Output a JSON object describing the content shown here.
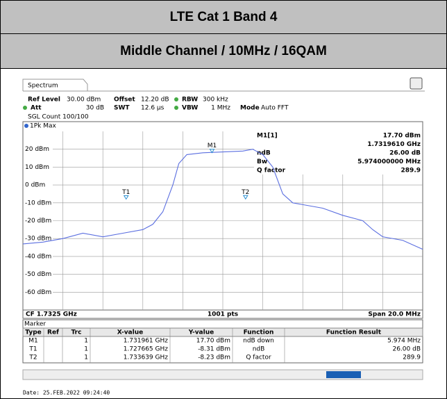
{
  "header": {
    "title": "LTE Cat 1 Band 4",
    "subtitle": "Middle Channel / 10MHz / 16QAM"
  },
  "screen": {
    "tab": "Spectrum",
    "settings": [
      "Ref Level",
      "30.00 dBm",
      "Offset",
      "12.20 dB",
      "RBW",
      "300 kHz",
      "Att",
      "30 dB",
      "SWT",
      "12.6 µs",
      "VBW",
      "1 MHz",
      "Mode",
      "Auto FFT",
      "SGL Count 100/100"
    ],
    "date": "Date: 25.FEB.2022  09:24:40"
  },
  "chart_data": {
    "type": "line",
    "trace_label": "1Pk Max",
    "color": "#5a6ee0",
    "x": [
      1.7225,
      1.7235,
      1.7245,
      1.7255,
      1.7265,
      1.7275,
      1.7285,
      1.729,
      1.7295,
      1.73,
      1.7303,
      1.7307,
      1.7315,
      1.7325,
      1.7335,
      1.734,
      1.7345,
      1.735,
      1.7355,
      1.736,
      1.7365,
      1.7375,
      1.7385,
      1.7395,
      1.74,
      1.7405,
      1.7415,
      1.7425
    ],
    "values": [
      -33,
      -32,
      -30,
      -27,
      -29,
      -27,
      -25,
      -22,
      -15,
      0,
      12,
      17,
      18,
      18.5,
      19,
      20,
      17,
      10,
      -5,
      -10,
      -11,
      -13,
      -17,
      -20,
      -25,
      -29,
      -31,
      -36
    ],
    "xlim": [
      1.7225,
      1.7425
    ],
    "ylim": [
      -70,
      30
    ],
    "yticks": [
      {
        "value": 20,
        "label": "20 dBm"
      },
      {
        "value": 10,
        "label": "10 dBm"
      },
      {
        "value": 0,
        "label": "0 dBm"
      },
      {
        "value": -10,
        "label": "-10 dBm"
      },
      {
        "value": -20,
        "label": "-20 dBm"
      },
      {
        "value": -30,
        "label": "-30 dBm"
      },
      {
        "value": -40,
        "label": "-40 dBm"
      },
      {
        "value": -50,
        "label": "-50 dBm"
      },
      {
        "value": -60,
        "label": "-60 dBm"
      }
    ],
    "markers": [
      {
        "label": "M1",
        "x": 1.731961,
        "y": 17.7
      },
      {
        "label": "T1",
        "x": 1.727665,
        "y": -8.31
      },
      {
        "label": "T2",
        "x": 1.733639,
        "y": -8.23
      }
    ],
    "marker_info": [
      [
        "M1[1]",
        "17.70 dBm"
      ],
      [
        "",
        "1.7319610 GHz"
      ],
      [
        "ndB",
        "26.00 dB"
      ],
      [
        "Bw",
        "5.974000000 MHz"
      ],
      [
        "Q factor",
        "289.9"
      ]
    ],
    "footer": {
      "cf": "CF 1.7325 GHz",
      "points": "1001 pts",
      "span": "Span 20.0 MHz"
    }
  },
  "marker_table": {
    "title": "Marker",
    "columns": [
      "Type",
      "Ref",
      "Trc",
      "X-value",
      "Y-value",
      "Function",
      "Function Result"
    ],
    "rows": [
      [
        "M1",
        "",
        "1",
        "1.731961 GHz",
        "17.70 dBm",
        "ndB down",
        "5.974 MHz"
      ],
      [
        "T1",
        "",
        "1",
        "1.727665 GHz",
        "-8.31 dBm",
        "ndB",
        "26.00 dB"
      ],
      [
        "T2",
        "",
        "1",
        "1.733639 GHz",
        "-8.23 dBm",
        "Q factor",
        "289.9"
      ]
    ]
  }
}
